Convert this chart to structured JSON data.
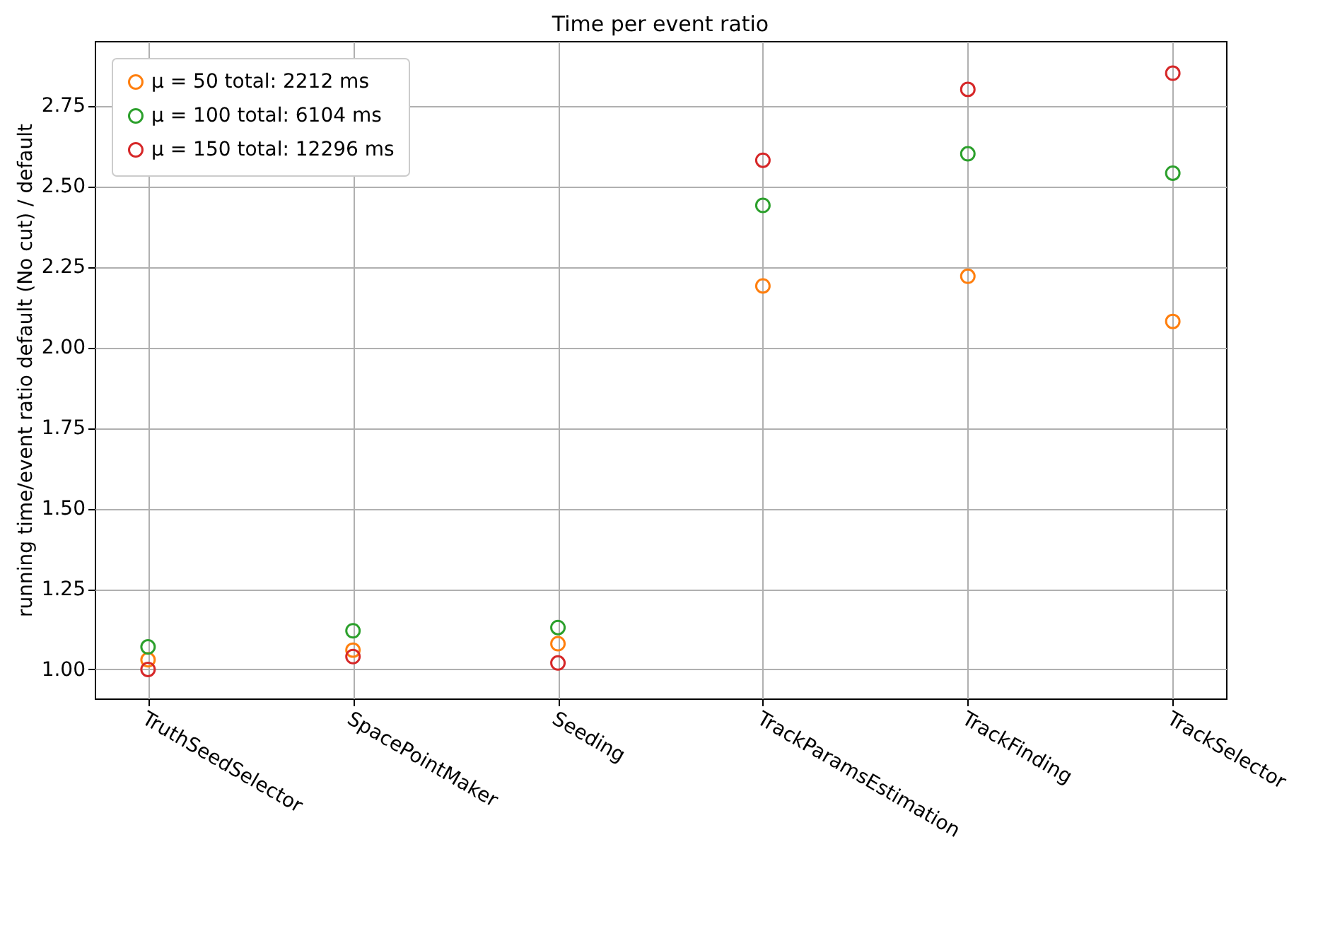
{
  "chart_data": {
    "type": "scatter",
    "title": "Time per event ratio",
    "ylabel": "running time/event ratio default (No cut) / default",
    "categories": [
      "TruthSeedSelector",
      "SpacePointMaker",
      "Seeding",
      "TrackParamsEstimation",
      "TrackFinding",
      "TrackSelector"
    ],
    "series": [
      {
        "name": "μ = 50 total: 2212 ms",
        "color": "#ff7f0e",
        "values": [
          1.03,
          1.06,
          1.08,
          2.19,
          2.22,
          2.08
        ]
      },
      {
        "name": "μ = 100 total: 6104 ms",
        "color": "#2ca02c",
        "values": [
          1.07,
          1.12,
          1.13,
          2.44,
          2.6,
          2.54
        ]
      },
      {
        "name": "μ = 150 total: 12296 ms",
        "color": "#d62728",
        "values": [
          1.0,
          1.04,
          1.02,
          2.58,
          2.8,
          2.85
        ]
      }
    ],
    "ylim": [
      0.91,
      2.95
    ],
    "yticks": [
      {
        "value": 1,
        "label": "1.00"
      },
      1.25,
      {
        "value": 1.5,
        "label": "1.50"
      },
      1.75,
      {
        "value": 2,
        "label": "2.00"
      },
      2.25,
      {
        "value": 2.5,
        "label": "2.50"
      },
      2.75
    ],
    "grid": true,
    "legend": "top left",
    "marker": "circle"
  }
}
